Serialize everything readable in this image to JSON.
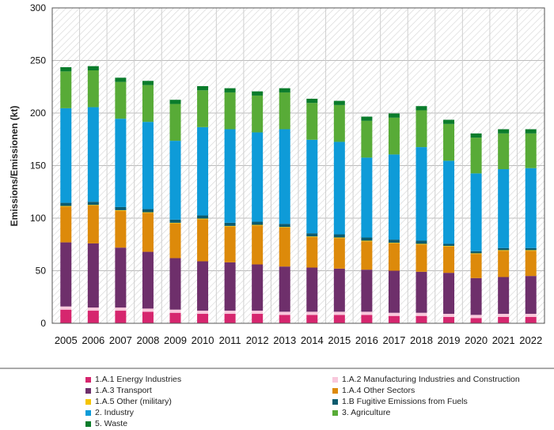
{
  "chart_data": {
    "type": "bar",
    "stacked": true,
    "title": "",
    "xlabel": "",
    "ylabel": "Emissions/Emissionen (kt)",
    "ylim": [
      0,
      300
    ],
    "yticks": [
      0,
      50,
      100,
      150,
      200,
      250,
      300
    ],
    "grid": "off",
    "legend_position": "bottom",
    "categories": [
      "2005",
      "2006",
      "2007",
      "2008",
      "2009",
      "2010",
      "2011",
      "2012",
      "2013",
      "2014",
      "2015",
      "2016",
      "2017",
      "2018",
      "2019",
      "2020",
      "2021",
      "2022"
    ],
    "series": [
      {
        "name": "1.A.1 Energy Industries",
        "color": "#d6266e",
        "values": [
          13,
          12,
          12,
          11,
          10,
          9,
          9,
          9,
          8,
          8,
          8,
          8,
          7,
          7,
          6,
          5,
          6,
          6
        ]
      },
      {
        "name": "1.A.2 Manufacturing Industries and Construction",
        "color": "#f9c8dc",
        "values": [
          3,
          3,
          3,
          3,
          3,
          3,
          3,
          3,
          3,
          3,
          3,
          3,
          3,
          3,
          3,
          3,
          3,
          3
        ]
      },
      {
        "name": "1.A.3 Transport",
        "color": "#6e2f6b",
        "values": [
          61,
          61,
          57,
          54,
          49,
          47,
          46,
          44,
          43,
          42,
          41,
          40,
          40,
          39,
          39,
          35,
          35,
          36
        ]
      },
      {
        "name": "1.A.4 Other Sectors",
        "color": "#dd8a0a",
        "values": [
          34,
          36,
          35,
          37,
          33,
          40,
          34,
          37,
          37,
          29,
          29,
          27,
          26,
          26,
          25,
          23,
          25,
          24
        ]
      },
      {
        "name": "1.A.5 Other (military)",
        "color": "#f5c400",
        "values": [
          0.6,
          0.6,
          0.6,
          0.6,
          0.6,
          0.6,
          0.6,
          0.6,
          0.6,
          0.6,
          0.6,
          0.6,
          0.6,
          0.6,
          0.6,
          0.6,
          0.6,
          0.6
        ]
      },
      {
        "name": "1.B Fugitive Emissions from Fuels",
        "color": "#0b5b6e",
        "values": [
          3,
          3,
          3,
          3,
          3,
          3,
          3,
          3,
          3,
          3,
          3,
          3,
          3,
          3,
          2,
          2,
          2,
          2
        ]
      },
      {
        "name": "2. Industry",
        "color": "#0e9bd8",
        "values": [
          90,
          90,
          84,
          83,
          75,
          84,
          89,
          85,
          90,
          89,
          88,
          76,
          81,
          89,
          79,
          74,
          75,
          76
        ]
      },
      {
        "name": "3. Agriculture",
        "color": "#58ab37",
        "values": [
          35,
          35,
          35,
          35,
          35,
          35,
          35,
          35,
          35,
          35,
          35,
          35,
          35,
          35,
          35,
          34,
          34,
          33
        ]
      },
      {
        "name": "5. Waste",
        "color": "#0a7c2b",
        "values": [
          4,
          4,
          4,
          4,
          4,
          4,
          4,
          4,
          4,
          4,
          4,
          4,
          4,
          4,
          4,
          4,
          4,
          4
        ]
      }
    ]
  }
}
